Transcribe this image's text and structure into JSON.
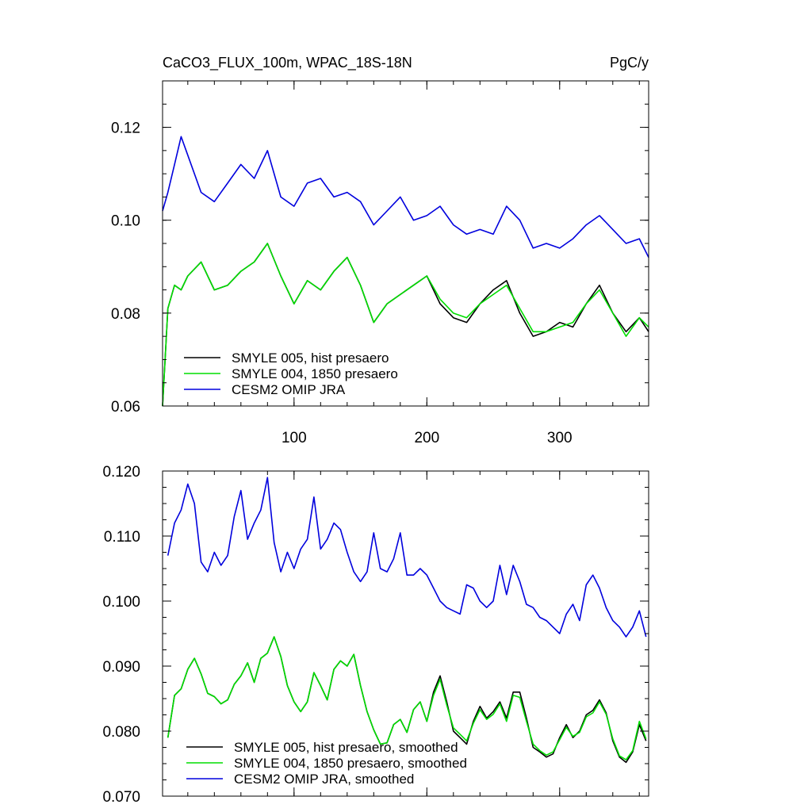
{
  "chart_data": [
    {
      "type": "line",
      "title": "CaCO3_FLUX_100m, WPAC_18S-18N",
      "units": "PgC/y",
      "xlim": [
        1,
        367
      ],
      "ylim": [
        0.06,
        0.13
      ],
      "x_ticks": [
        100,
        200,
        300
      ],
      "x_tick_labels": [
        "100",
        "200",
        "300"
      ],
      "y_ticks": [
        0.06,
        0.08,
        0.1,
        0.12
      ],
      "y_tick_labels": [
        "0.06",
        "0.08",
        "0.10",
        "0.12"
      ],
      "legend_position": "bottom-left",
      "series": [
        {
          "name": "SMYLE 005, hist presaero",
          "color": "#000000",
          "x": [
            1,
            5,
            10,
            15,
            20,
            30,
            40,
            50,
            60,
            70,
            80,
            90,
            100,
            110,
            120,
            130,
            140,
            150,
            160,
            170,
            180,
            190,
            200,
            210,
            220,
            230,
            240,
            250,
            260,
            270,
            280,
            290,
            300,
            310,
            320,
            330,
            340,
            350,
            360,
            367
          ],
          "y": [
            0.06,
            0.081,
            0.086,
            0.085,
            0.088,
            0.091,
            0.085,
            0.086,
            0.089,
            0.091,
            0.095,
            0.088,
            0.082,
            0.087,
            0.085,
            0.089,
            0.092,
            0.086,
            0.078,
            0.082,
            0.084,
            0.086,
            0.088,
            0.082,
            0.079,
            0.078,
            0.082,
            0.085,
            0.087,
            0.08,
            0.075,
            0.076,
            0.078,
            0.077,
            0.082,
            0.086,
            0.08,
            0.076,
            0.079,
            0.076
          ]
        },
        {
          "name": "SMYLE 004, 1850 presaero",
          "color": "#00dd00",
          "x": [
            1,
            5,
            10,
            15,
            20,
            30,
            40,
            50,
            60,
            70,
            80,
            90,
            100,
            110,
            120,
            130,
            140,
            150,
            160,
            170,
            180,
            190,
            200,
            210,
            220,
            230,
            240,
            250,
            260,
            270,
            280,
            290,
            300,
            310,
            320,
            330,
            340,
            350,
            360,
            367
          ],
          "y": [
            0.06,
            0.081,
            0.086,
            0.085,
            0.088,
            0.091,
            0.085,
            0.086,
            0.089,
            0.091,
            0.095,
            0.088,
            0.082,
            0.087,
            0.085,
            0.089,
            0.092,
            0.086,
            0.078,
            0.082,
            0.084,
            0.086,
            0.088,
            0.083,
            0.08,
            0.079,
            0.082,
            0.084,
            0.086,
            0.081,
            0.076,
            0.076,
            0.077,
            0.078,
            0.082,
            0.085,
            0.08,
            0.075,
            0.079,
            0.077
          ]
        },
        {
          "name": "CESM2 OMIP JRA",
          "color": "#0000dd",
          "x": [
            1,
            5,
            10,
            15,
            20,
            30,
            40,
            50,
            60,
            70,
            80,
            90,
            100,
            110,
            120,
            130,
            140,
            150,
            160,
            170,
            180,
            190,
            200,
            210,
            220,
            230,
            240,
            250,
            260,
            270,
            280,
            290,
            300,
            310,
            320,
            330,
            340,
            350,
            360,
            367
          ],
          "y": [
            0.102,
            0.106,
            0.112,
            0.118,
            0.114,
            0.106,
            0.104,
            0.108,
            0.112,
            0.109,
            0.115,
            0.105,
            0.103,
            0.108,
            0.109,
            0.105,
            0.106,
            0.104,
            0.099,
            0.102,
            0.105,
            0.1,
            0.101,
            0.103,
            0.099,
            0.097,
            0.098,
            0.097,
            0.103,
            0.1,
            0.094,
            0.095,
            0.094,
            0.096,
            0.099,
            0.101,
            0.098,
            0.095,
            0.096,
            0.092
          ]
        }
      ]
    },
    {
      "type": "line",
      "xlim": [
        1,
        367
      ],
      "ylim": [
        0.07,
        0.12
      ],
      "x_ticks": [
        100,
        200,
        300
      ],
      "y_ticks": [
        0.07,
        0.08,
        0.09,
        0.1,
        0.11,
        0.12
      ],
      "y_tick_labels": [
        "0.070",
        "0.080",
        "0.090",
        "0.100",
        "0.110",
        "0.120"
      ],
      "legend_position": "bottom-left",
      "series": [
        {
          "name": "SMYLE 005, hist presaero, smoothed",
          "color": "#000000",
          "x": [
            5,
            10,
            15,
            20,
            25,
            30,
            35,
            40,
            45,
            50,
            55,
            60,
            65,
            70,
            75,
            80,
            85,
            90,
            95,
            100,
            105,
            110,
            115,
            120,
            125,
            130,
            135,
            140,
            145,
            150,
            155,
            160,
            165,
            170,
            175,
            180,
            185,
            190,
            195,
            200,
            205,
            210,
            215,
            220,
            225,
            230,
            235,
            240,
            245,
            250,
            255,
            260,
            265,
            270,
            275,
            280,
            285,
            290,
            295,
            300,
            305,
            310,
            315,
            320,
            325,
            330,
            335,
            340,
            345,
            350,
            355,
            360,
            365
          ],
          "y": [
            0.079,
            0.0855,
            0.0865,
            0.0895,
            0.0912,
            0.0888,
            0.0858,
            0.0853,
            0.0842,
            0.0848,
            0.0872,
            0.0885,
            0.0905,
            0.0875,
            0.0912,
            0.092,
            0.0945,
            0.0915,
            0.087,
            0.0845,
            0.083,
            0.0845,
            0.089,
            0.087,
            0.0848,
            0.0895,
            0.0908,
            0.09,
            0.0918,
            0.087,
            0.083,
            0.0802,
            0.078,
            0.0782,
            0.081,
            0.0818,
            0.0798,
            0.0833,
            0.0845,
            0.0815,
            0.086,
            0.0885,
            0.0845,
            0.08,
            0.079,
            0.078,
            0.0815,
            0.0838,
            0.082,
            0.083,
            0.0845,
            0.082,
            0.086,
            0.086,
            0.082,
            0.0775,
            0.0768,
            0.076,
            0.0765,
            0.079,
            0.081,
            0.079,
            0.08,
            0.0825,
            0.0832,
            0.0848,
            0.0828,
            0.0785,
            0.076,
            0.0752,
            0.0768,
            0.081,
            0.0785
          ]
        },
        {
          "name": "SMYLE 004, 1850 presaero, smoothed",
          "color": "#00dd00",
          "x": [
            5,
            10,
            15,
            20,
            25,
            30,
            35,
            40,
            45,
            50,
            55,
            60,
            65,
            70,
            75,
            80,
            85,
            90,
            95,
            100,
            105,
            110,
            115,
            120,
            125,
            130,
            135,
            140,
            145,
            150,
            155,
            160,
            165,
            170,
            175,
            180,
            185,
            190,
            195,
            200,
            205,
            210,
            215,
            220,
            225,
            230,
            235,
            240,
            245,
            250,
            255,
            260,
            265,
            270,
            275,
            280,
            285,
            290,
            295,
            300,
            305,
            310,
            315,
            320,
            325,
            330,
            335,
            340,
            345,
            350,
            355,
            360,
            365
          ],
          "y": [
            0.079,
            0.0855,
            0.0865,
            0.0895,
            0.0912,
            0.0888,
            0.0858,
            0.0853,
            0.0842,
            0.0848,
            0.0872,
            0.0885,
            0.0905,
            0.0875,
            0.0912,
            0.092,
            0.0945,
            0.0915,
            0.087,
            0.0845,
            0.083,
            0.0845,
            0.089,
            0.087,
            0.0848,
            0.0895,
            0.0908,
            0.09,
            0.0918,
            0.087,
            0.083,
            0.0802,
            0.078,
            0.0782,
            0.081,
            0.0818,
            0.0798,
            0.0833,
            0.0845,
            0.0815,
            0.0855,
            0.088,
            0.084,
            0.0805,
            0.0795,
            0.0785,
            0.0812,
            0.0833,
            0.0818,
            0.0826,
            0.0842,
            0.0815,
            0.0855,
            0.0852,
            0.0815,
            0.078,
            0.077,
            0.0763,
            0.0768,
            0.0787,
            0.0806,
            0.0792,
            0.0798,
            0.0822,
            0.0828,
            0.0845,
            0.0826,
            0.0788,
            0.0762,
            0.0756,
            0.077,
            0.0815,
            0.0788
          ]
        },
        {
          "name": "CESM2 OMIP JRA, smoothed",
          "color": "#0000dd",
          "x": [
            5,
            10,
            15,
            20,
            25,
            30,
            35,
            40,
            45,
            50,
            55,
            60,
            65,
            70,
            75,
            80,
            85,
            90,
            95,
            100,
            105,
            110,
            115,
            120,
            125,
            130,
            135,
            140,
            145,
            150,
            155,
            160,
            165,
            170,
            175,
            180,
            185,
            190,
            195,
            200,
            205,
            210,
            215,
            220,
            225,
            230,
            235,
            240,
            245,
            250,
            255,
            260,
            265,
            270,
            275,
            280,
            285,
            290,
            295,
            300,
            305,
            310,
            315,
            320,
            325,
            330,
            335,
            340,
            345,
            350,
            355,
            360,
            365
          ],
          "y": [
            0.107,
            0.112,
            0.114,
            0.118,
            0.115,
            0.106,
            0.1045,
            0.1075,
            0.1055,
            0.107,
            0.113,
            0.117,
            0.1095,
            0.112,
            0.114,
            0.119,
            0.109,
            0.1045,
            0.1075,
            0.105,
            0.108,
            0.1095,
            0.116,
            0.108,
            0.1095,
            0.112,
            0.111,
            0.1075,
            0.1045,
            0.103,
            0.1045,
            0.1105,
            0.105,
            0.1045,
            0.1065,
            0.1105,
            0.104,
            0.104,
            0.105,
            0.104,
            0.102,
            0.1,
            0.099,
            0.0985,
            0.098,
            0.1025,
            0.102,
            0.1,
            0.099,
            0.1,
            0.1055,
            0.101,
            0.1055,
            0.103,
            0.0995,
            0.099,
            0.0975,
            0.097,
            0.096,
            0.095,
            0.098,
            0.0995,
            0.097,
            0.1025,
            0.104,
            0.102,
            0.099,
            0.097,
            0.096,
            0.0945,
            0.096,
            0.0985,
            0.0945
          ]
        }
      ]
    }
  ]
}
